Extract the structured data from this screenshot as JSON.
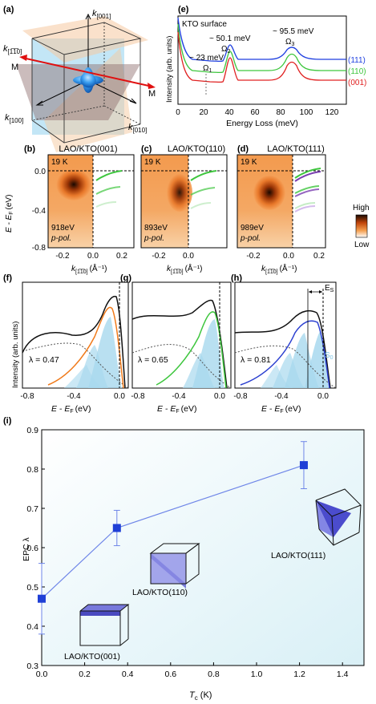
{
  "panels": {
    "a": {
      "label": "(a)",
      "axis_k001": "k",
      "axis_k001_sub": "[001]",
      "axis_k1m10": "k",
      "axis_k1m10_sub": "[1̅1̅0]",
      "axis_k100": "k",
      "axis_k100_sub": "[100]",
      "axis_k010": "k",
      "axis_k010_sub": "[010]",
      "m_left": "M",
      "m_right": "M"
    },
    "e": {
      "label": "(e)",
      "title": "KTO surface",
      "ylabel": "Intensity (arb. units)",
      "xlabel": "Energy Loss (meV)",
      "peak1": "~ 23 meV",
      "peak1_omega": "Ω",
      "peak1_sub": "1",
      "peak2": "~ 50.1 meV",
      "peak2_omega": "Ω",
      "peak2_sub": "2",
      "peak3": "~ 95.5 meV",
      "peak3_omega": "Ω",
      "peak3_sub": "3",
      "ticks_x": [
        "0",
        "20",
        "40",
        "60",
        "80",
        "100",
        "120"
      ],
      "legend": [
        "(111)",
        "(110)",
        "(001)"
      ]
    },
    "arpes": [
      {
        "label": "(b)",
        "title": "LAO/KTO(001)",
        "temp": "19 K",
        "energy": "918eV",
        "pol": "p-pol."
      },
      {
        "label": "(c)",
        "title": "LAO/KTO(110)",
        "temp": "19 K",
        "energy": "893eV",
        "pol": "p-pol."
      },
      {
        "label": "(d)",
        "title": "LAO/KTO(111)",
        "temp": "19 K",
        "energy": "989eV",
        "pol": "p-pol."
      }
    ],
    "arpes_axes": {
      "ylabel": "E - E",
      "ylabel_sub": "F",
      "ylabel_unit": "(eV)",
      "yticks": [
        "0.0",
        "-0.4",
        "-0.8"
      ],
      "xticks": [
        "-0.2",
        "0.0",
        "0.2"
      ],
      "xlabel": "k",
      "xlabel_sub": "[1̅1̅0]",
      "xlabel_unit": "(Å⁻¹)"
    },
    "colorbar": {
      "high": "High",
      "low": "Low"
    },
    "edc": [
      {
        "label": "(f)",
        "lambda": "λ = 0.47"
      },
      {
        "label": "(g)",
        "lambda": "λ = 0.65"
      },
      {
        "label": "(h)",
        "lambda": "λ = 0.81",
        "es": "E",
        "es_sub": "S",
        "s0": "S",
        "s0_sub": "0"
      }
    ],
    "edc_axes": {
      "ylabel": "Intensity (arb. units)",
      "xticks": [
        "-0.8",
        "-0.4",
        "0.0"
      ],
      "xlabel": "E - E",
      "xlabel_sub": "F",
      "xlabel_unit": "(eV)"
    },
    "i": {
      "label": "(i)",
      "ylabel": "EPC λ",
      "xlabel": "T",
      "xlabel_sub": "c",
      "xlabel_unit": " (K)",
      "xticks": [
        "0.0",
        "0.2",
        "0.4",
        "0.6",
        "0.8",
        "1.0",
        "1.2",
        "1.4"
      ],
      "yticks": [
        "0.3",
        "0.4",
        "0.5",
        "0.6",
        "0.7",
        "0.8",
        "0.9"
      ],
      "annotations": [
        "LAO/KTO(001)",
        "LAO/KTO(110)",
        "LAO/KTO(111)"
      ]
    }
  },
  "chart_data": {
    "type": "line",
    "xlabel": "Tc (K)",
    "ylabel": "EPC λ",
    "xlim": [
      0,
      1.5
    ],
    "ylim": [
      0.3,
      0.9
    ],
    "x": [
      0.0,
      0.35,
      1.22
    ],
    "series": [
      {
        "values": [
          0.47,
          0.65,
          0.81
        ],
        "err": [
          0.09,
          0.045,
          0.06
        ]
      }
    ],
    "colors": {
      "series": "#1f3fd6",
      "line": "#6f86e8"
    }
  },
  "colors": {
    "c111": "#1e3fe0",
    "c110": "#3ec63e",
    "c001": "#e02020",
    "fill": "#a8d8ee",
    "orange": "#f07a1a"
  }
}
